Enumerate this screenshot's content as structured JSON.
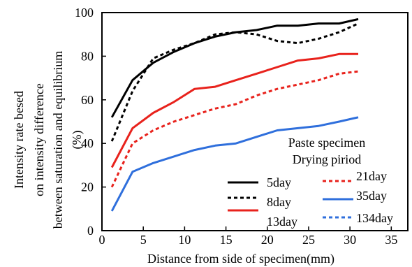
{
  "chart_data": {
    "type": "line",
    "xlabel": "Distance from side of specimen(mm)",
    "ylabel_lines": [
      "Intensity rate besed",
      "on intensity difference",
      "between saturation and equilibrium",
      "(%)"
    ],
    "xlim": [
      0,
      37
    ],
    "ylim": [
      0,
      100
    ],
    "xticks": [
      0,
      5,
      10,
      15,
      20,
      25,
      30,
      35
    ],
    "yticks": [
      0,
      20,
      40,
      60,
      80,
      100
    ],
    "grid": false,
    "legend": {
      "header_lines": [
        "Paste specimen",
        "Drying piriod"
      ],
      "placement": "bottom-right",
      "labels": [
        "5day",
        "8day",
        "13day",
        "21day",
        "35day",
        "134day"
      ]
    },
    "series": [
      {
        "name": "5day",
        "color": "#000000",
        "dash": "solid",
        "x": [
          1.2,
          3.7,
          6.2,
          8.7,
          11.2,
          13.7,
          16.2,
          18.7,
          21.2,
          23.7,
          26.2,
          28.7,
          31.0
        ],
        "y": [
          52,
          69,
          77,
          82,
          86,
          89,
          91,
          92,
          94,
          94,
          95,
          95,
          97
        ]
      },
      {
        "name": "8day",
        "color": "#000000",
        "dash": "dashed",
        "x": [
          1.2,
          3.7,
          6.2,
          8.7,
          11.2,
          13.7,
          16.2,
          18.7,
          21.2,
          23.7,
          26.2,
          28.7,
          31.0
        ],
        "y": [
          41,
          64,
          79,
          83,
          86,
          90,
          91,
          90,
          87,
          86,
          88,
          91,
          95
        ]
      },
      {
        "name": "13day",
        "color": "#e8221c",
        "dash": "solid",
        "x": [
          1.2,
          3.7,
          6.2,
          8.7,
          11.2,
          13.7,
          16.2,
          18.7,
          21.2,
          23.7,
          26.2,
          28.7,
          31.0
        ],
        "y": [
          29,
          47,
          54,
          59,
          65,
          66,
          69,
          72,
          75,
          78,
          79,
          81,
          81
        ]
      },
      {
        "name": "21day",
        "color": "#e8221c",
        "dash": "dashed",
        "x": [
          1.2,
          3.7,
          6.2,
          8.7,
          11.2,
          13.7,
          16.2,
          18.7,
          21.2,
          23.7,
          26.2,
          28.7,
          31.0
        ],
        "y": [
          20,
          40,
          46,
          50,
          53,
          56,
          58,
          62,
          65,
          67,
          69,
          72,
          73
        ]
      },
      {
        "name": "35day",
        "color": "#2f6fdc",
        "dash": "solid",
        "x": [
          1.2,
          3.7,
          6.2,
          8.7,
          11.2,
          13.7,
          16.2,
          18.7,
          21.2,
          23.7,
          26.2,
          28.7,
          31.0
        ],
        "y": [
          9,
          27,
          31,
          34,
          37,
          39,
          40,
          43,
          46,
          47,
          48,
          50,
          52
        ]
      },
      {
        "name": "134day",
        "color": "#2f6fdc",
        "dash": "dashed",
        "x": [],
        "y": []
      }
    ]
  }
}
